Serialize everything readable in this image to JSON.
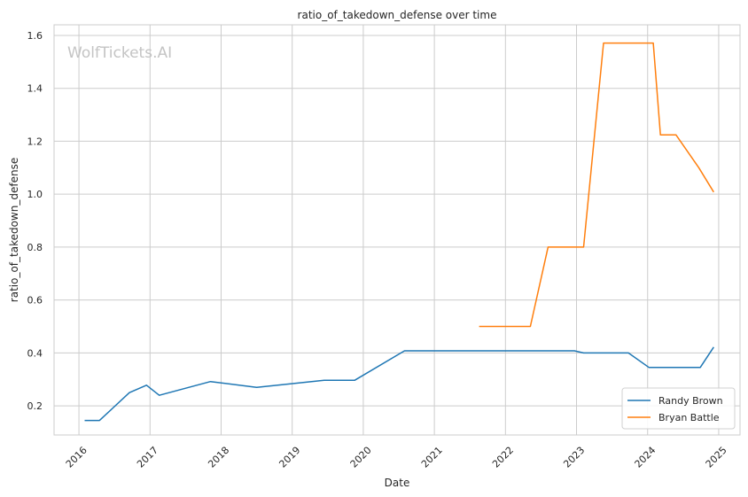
{
  "chart_data": {
    "type": "line",
    "title": "ratio_of_takedown_defense over time",
    "xlabel": "Date",
    "ylabel": "ratio_of_takedown_defense",
    "watermark": "WolfTickets.AI",
    "x_ticks": [
      "2016",
      "2017",
      "2018",
      "2019",
      "2020",
      "2021",
      "2022",
      "2023",
      "2024",
      "2025"
    ],
    "y_ticks": [
      "0.2",
      "0.4",
      "0.6",
      "0.8",
      "1.0",
      "1.2",
      "1.4",
      "1.6"
    ],
    "xlim": [
      2015.65,
      2025.3
    ],
    "ylim": [
      0.09,
      1.64
    ],
    "grid": true,
    "legend_position": "lower right",
    "series": [
      {
        "name": "Randy Brown",
        "color": "#1f77b4",
        "x": [
          2016.08,
          2016.29,
          2016.71,
          2016.95,
          2017.13,
          2017.85,
          2018.5,
          2019.45,
          2019.88,
          2020.58,
          2021.5,
          2022.5,
          2022.97,
          2023.1,
          2023.73,
          2024.02,
          2024.32,
          2024.74,
          2024.93
        ],
        "y": [
          0.145,
          0.145,
          0.25,
          0.278,
          0.24,
          0.292,
          0.27,
          0.297,
          0.297,
          0.408,
          0.408,
          0.408,
          0.408,
          0.4,
          0.4,
          0.345,
          0.345,
          0.345,
          0.422
        ]
      },
      {
        "name": "Bryan Battle",
        "color": "#ff7f0e",
        "x": [
          2021.63,
          2022.35,
          2022.6,
          2023.1,
          2023.38,
          2024.08,
          2024.18,
          2024.4,
          2024.72,
          2024.93
        ],
        "y": [
          0.5,
          0.5,
          0.8,
          0.8,
          1.571,
          1.571,
          1.224,
          1.224,
          1.1,
          1.008
        ]
      }
    ]
  }
}
